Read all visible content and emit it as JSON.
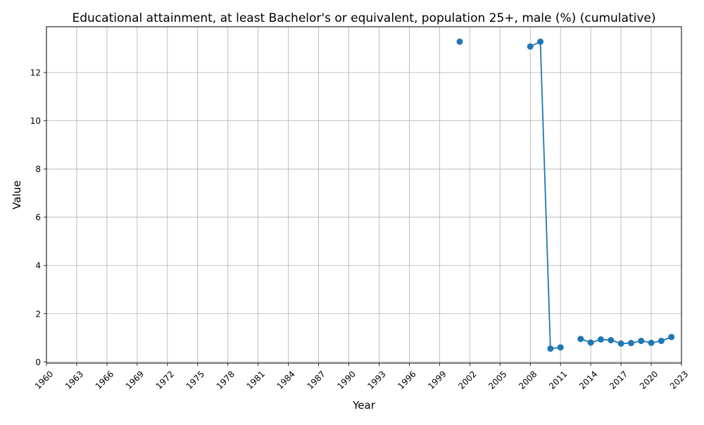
{
  "chart_data": {
    "type": "line",
    "title": "Educational attainment, at least Bachelor's or equivalent, population 25+, male (%) (cumulative)",
    "xlabel": "Year",
    "ylabel": "Value",
    "xlim": [
      1960,
      2023
    ],
    "ylim": [
      -0.05,
      13.9
    ],
    "x_ticks": [
      1960,
      1963,
      1966,
      1969,
      1972,
      1975,
      1978,
      1981,
      1984,
      1987,
      1990,
      1993,
      1996,
      1999,
      2002,
      2005,
      2008,
      2011,
      2014,
      2017,
      2020,
      2023
    ],
    "y_ticks": [
      0,
      2,
      4,
      6,
      8,
      10,
      12
    ],
    "grid": true,
    "legend": "none",
    "color": "#1f77b4",
    "series": [
      {
        "points": [
          {
            "x": 2001,
            "y": 13.28
          },
          {
            "x": 2008,
            "y": 13.08
          },
          {
            "x": 2009,
            "y": 13.28
          },
          {
            "x": 2010,
            "y": 0.55
          },
          {
            "x": 2011,
            "y": 0.6
          },
          {
            "x": 2013,
            "y": 0.95
          },
          {
            "x": 2014,
            "y": 0.8
          },
          {
            "x": 2015,
            "y": 0.93
          },
          {
            "x": 2016,
            "y": 0.9
          },
          {
            "x": 2017,
            "y": 0.76
          },
          {
            "x": 2018,
            "y": 0.78
          },
          {
            "x": 2019,
            "y": 0.87
          },
          {
            "x": 2020,
            "y": 0.79
          },
          {
            "x": 2021,
            "y": 0.87
          },
          {
            "x": 2022,
            "y": 1.03
          }
        ]
      }
    ]
  }
}
